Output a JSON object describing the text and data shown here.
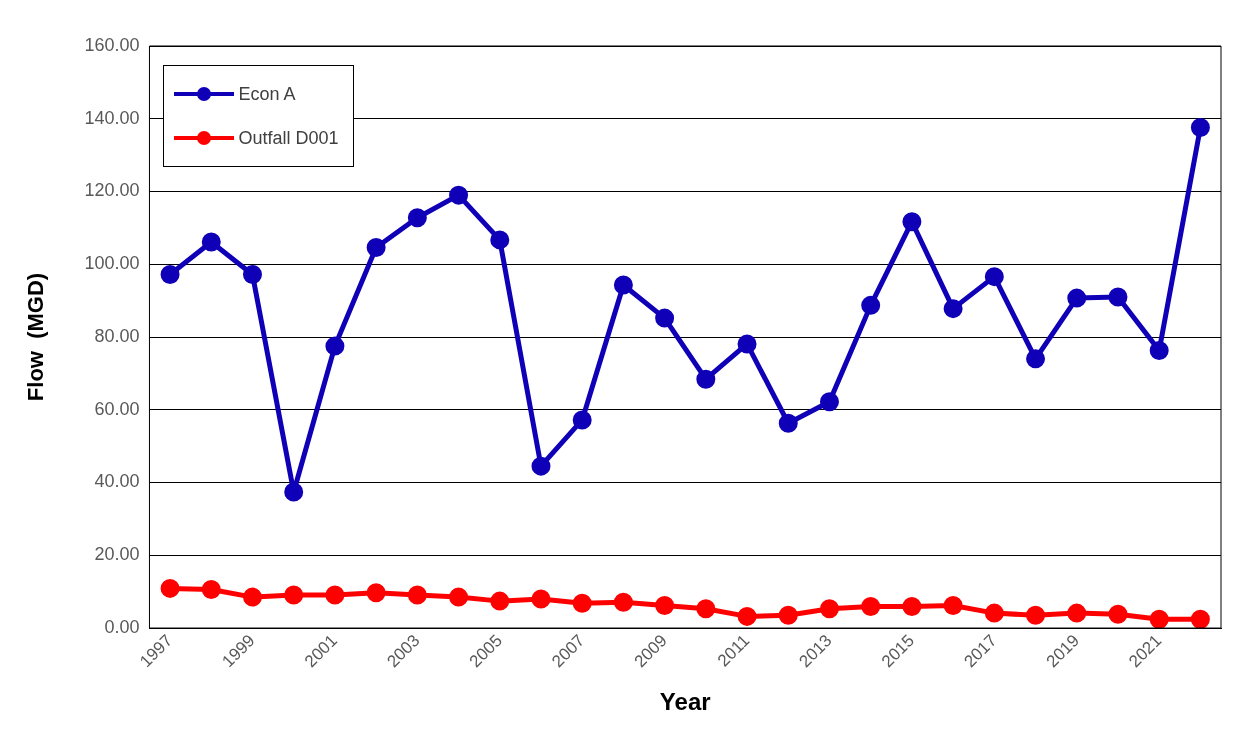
{
  "chart_data": {
    "type": "line",
    "xlabel": "Year",
    "ylabel": "Flow  (MGD)",
    "categories": [
      "1997",
      null,
      "1999",
      null,
      "2001",
      null,
      "2003",
      null,
      "2005",
      null,
      "2007",
      null,
      "2009",
      null,
      "2011",
      null,
      "2013",
      null,
      "2015",
      null,
      "2017",
      null,
      "2019",
      null,
      "2021",
      null
    ],
    "series": [
      {
        "name": "Econ A",
        "color": "#0f00b8",
        "values": [
          97.2,
          106.1,
          97.2,
          37.4,
          77.5,
          104.6,
          112.8,
          119.0,
          106.7,
          44.5,
          57.2,
          94.3,
          85.2,
          68.4,
          78.1,
          56.3,
          62.2,
          88.7,
          111.7,
          87.8,
          96.6,
          74.0,
          90.7,
          91.0,
          76.3,
          137.6
        ]
      },
      {
        "name": "Outfall D001",
        "color": "#ff0000",
        "values": [
          10.9,
          10.6,
          8.5,
          9.1,
          9.1,
          9.7,
          9.1,
          8.5,
          7.4,
          8.0,
          6.8,
          7.1,
          6.2,
          5.3,
          3.2,
          3.5,
          5.3,
          5.9,
          5.9,
          6.2,
          4.1,
          3.5,
          4.1,
          3.8,
          2.4,
          2.4
        ]
      }
    ],
    "ylim": [
      0,
      160
    ],
    "yticks": [
      {
        "value": 0,
        "label": "0.00"
      },
      {
        "value": 20,
        "label": "20.00"
      },
      {
        "value": 40,
        "label": "40.00"
      },
      {
        "value": 60,
        "label": "60.00"
      },
      {
        "value": 80,
        "label": "80.00"
      },
      {
        "value": 100,
        "label": "100.00"
      },
      {
        "value": 120,
        "label": "120.00"
      },
      {
        "value": 140,
        "label": "140.00"
      },
      {
        "value": 160,
        "label": "160.00"
      }
    ],
    "grid": "y",
    "legend": "top left",
    "marker": "circle",
    "line_style": "solid"
  }
}
